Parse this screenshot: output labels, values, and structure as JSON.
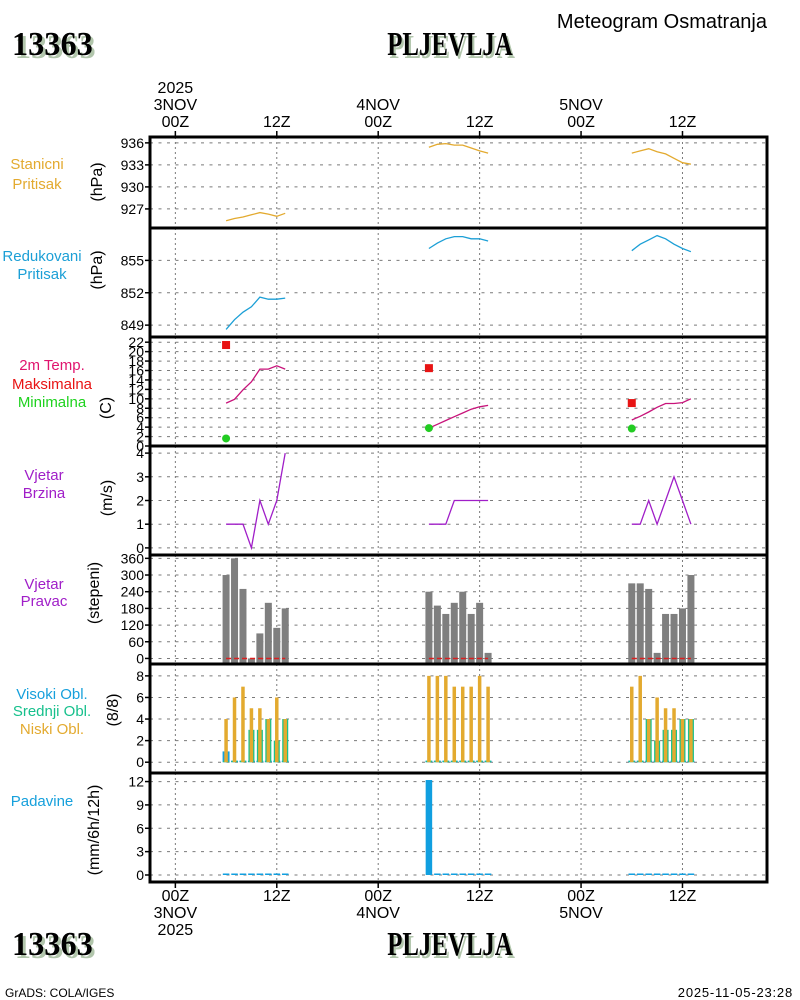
{
  "header": {
    "station_id": "13363",
    "station_name": "PLJEVLJA",
    "title": "Meteogram Osmatranja"
  },
  "footer": {
    "station_id": "13363",
    "station_name": "PLJEVLJA",
    "software": "GrADS: COLA/IGES",
    "timestamp": "2025-11-05-23:28"
  },
  "time_axis": {
    "unit": "hours since 3NOV2025 00Z",
    "range": [
      -3,
      70
    ],
    "ticks": [
      {
        "hour": 0,
        "top": [
          "2025",
          "3NOV",
          "00Z"
        ],
        "bottom": [
          "00Z",
          "3NOV",
          "2025"
        ]
      },
      {
        "hour": 12,
        "top": [
          "12Z"
        ],
        "bottom": [
          "12Z"
        ]
      },
      {
        "hour": 24,
        "top": [
          "4NOV",
          "00Z"
        ],
        "bottom": [
          "00Z",
          "4NOV"
        ]
      },
      {
        "hour": 36,
        "top": [
          "12Z"
        ],
        "bottom": [
          "12Z"
        ]
      },
      {
        "hour": 48,
        "top": [
          "5NOV",
          "00Z"
        ],
        "bottom": [
          "00Z",
          "5NOV"
        ]
      },
      {
        "hour": 60,
        "top": [
          "12Z"
        ],
        "bottom": [
          "12Z"
        ]
      }
    ]
  },
  "chart_data": [
    {
      "id": "stanicni-pritisak",
      "type": "line",
      "title_lines": [
        {
          "text": "Stanicni",
          "color": "#e3aa2f"
        },
        {
          "text": "Pritisak",
          "color": "#e3aa2f"
        }
      ],
      "ylabel": "(hPa)",
      "ylim": [
        924.4,
        936.8
      ],
      "yticks": [
        927,
        930,
        933,
        936
      ],
      "ytick_labels": [
        "927",
        "930",
        "933",
        "936"
      ],
      "series": [
        {
          "name": "Stanicni Pritisak",
          "kind": "line",
          "color": "#e3aa2f",
          "x": [
            6,
            7,
            8,
            9,
            10,
            11,
            12,
            13,
            30,
            31,
            32,
            33,
            34,
            35,
            36,
            37,
            54,
            55,
            56,
            57,
            58,
            59,
            60,
            61
          ],
          "y": [
            925.4,
            925.7,
            925.9,
            926.2,
            926.5,
            926.3,
            926.0,
            926.4,
            935.4,
            935.8,
            935.9,
            935.7,
            935.7,
            935.3,
            934.9,
            934.6,
            934.6,
            934.9,
            935.2,
            934.8,
            934.5,
            933.9,
            933.3,
            933.1
          ]
        }
      ]
    },
    {
      "id": "redukovani-pritisak",
      "type": "line",
      "title_lines": [
        {
          "text": "Redukovani",
          "color": "#1b9fd6"
        },
        {
          "text": "Pritisak",
          "color": "#1b9fd6"
        }
      ],
      "ylabel": "(hPa)",
      "ylim": [
        847.9,
        858.0
      ],
      "yticks": [
        849,
        852,
        855
      ],
      "ytick_labels": [
        "849",
        "852",
        "855"
      ],
      "series": [
        {
          "name": "Redukovani Pritisak",
          "kind": "line",
          "color": "#1b9fd6",
          "x": [
            6,
            7,
            8,
            9,
            10,
            11,
            12,
            13,
            30,
            31,
            32,
            33,
            34,
            35,
            36,
            37,
            54,
            55,
            56,
            57,
            58,
            59,
            60,
            61
          ],
          "y": [
            848.6,
            849.5,
            850.2,
            850.7,
            851.6,
            851.4,
            851.4,
            851.5,
            856.1,
            856.6,
            857.0,
            857.2,
            857.2,
            857.0,
            857.0,
            856.8,
            855.9,
            856.5,
            856.9,
            857.3,
            857.0,
            856.5,
            856.1,
            855.8
          ]
        }
      ]
    },
    {
      "id": "temperatura",
      "type": "line",
      "title_lines": [
        {
          "text": "2m Temp.",
          "color": "#e0146e"
        },
        {
          "text": "Maksimalna",
          "color": "#e81414"
        },
        {
          "text": "Minimalna",
          "color": "#1ed21e"
        }
      ],
      "ylabel": "(C)",
      "ylim": [
        0,
        23.1
      ],
      "yticks": [
        0,
        2,
        4,
        6,
        8,
        10,
        12,
        14,
        16,
        18,
        20,
        22
      ],
      "ytick_labels": [
        "0",
        "2",
        "4",
        "6",
        "8",
        "10",
        "12",
        "14",
        "16",
        "18",
        "20",
        "22"
      ],
      "series": [
        {
          "name": "2m Temp.",
          "kind": "line",
          "color": "#c8127a",
          "x": [
            6,
            7,
            8,
            9,
            10,
            11,
            12,
            13,
            30,
            31,
            32,
            33,
            34,
            35,
            36,
            37,
            54,
            55,
            56,
            57,
            58,
            59,
            60,
            61
          ],
          "y": [
            9.1,
            9.9,
            11.9,
            13.6,
            16.3,
            16.3,
            17.0,
            16.3,
            3.8,
            4.6,
            5.4,
            6.2,
            7.0,
            7.8,
            8.3,
            8.6,
            5.5,
            6.3,
            7.2,
            8.2,
            9.0,
            9.0,
            9.2,
            10.0
          ]
        },
        {
          "name": "Maksimalna",
          "kind": "square",
          "color": "#e81414",
          "x": [
            6,
            30,
            54
          ],
          "y": [
            21.4,
            16.5,
            9.1
          ]
        },
        {
          "name": "Minimalna",
          "kind": "circle",
          "color": "#22cc22",
          "x": [
            6,
            30,
            54
          ],
          "y": [
            1.6,
            3.8,
            3.7
          ]
        }
      ]
    },
    {
      "id": "vjetar-brzina",
      "type": "line",
      "title_lines": [
        {
          "text": "Vjetar",
          "color": "#a01ec8"
        },
        {
          "text": "Brzina",
          "color": "#a01ec8"
        }
      ],
      "ylabel": "(m/s)",
      "ylim": [
        -0.3,
        4.3
      ],
      "yticks": [
        0,
        1,
        2,
        3,
        4
      ],
      "ytick_labels": [
        "0",
        "1",
        "2",
        "3",
        "4"
      ],
      "series": [
        {
          "name": "Vjetar Brzina",
          "kind": "line",
          "color": "#a01ec8",
          "x": [
            6,
            7,
            8,
            9,
            10,
            11,
            12,
            13,
            30,
            31,
            32,
            33,
            34,
            35,
            36,
            37,
            54,
            55,
            56,
            57,
            58,
            59,
            60,
            61
          ],
          "y": [
            1,
            1,
            1,
            0,
            2,
            1,
            2,
            4,
            1,
            1,
            1,
            2,
            2,
            2,
            2,
            2,
            1,
            1,
            2,
            1,
            2,
            3,
            2,
            1
          ]
        }
      ]
    },
    {
      "id": "vjetar-pravac",
      "type": "bar",
      "title_lines": [
        {
          "text": "Vjetar",
          "color": "#a01ec8"
        },
        {
          "text": "Pravac",
          "color": "#a01ec8"
        }
      ],
      "ylabel": "(stepeni)",
      "ylim": [
        -20,
        372
      ],
      "yticks": [
        0,
        60,
        120,
        180,
        240,
        300,
        360
      ],
      "ytick_labels": [
        "0",
        "60",
        "120",
        "180",
        "240",
        "300",
        "360"
      ],
      "series": [
        {
          "name": "Vjetar Pravac",
          "kind": "bar",
          "color": "#7f7f7f",
          "bar_base": -20,
          "x": [
            6,
            7,
            8,
            9,
            10,
            11,
            12,
            13,
            30,
            31,
            32,
            33,
            34,
            35,
            36,
            37,
            54,
            55,
            56,
            57,
            58,
            59,
            60,
            61
          ],
          "y": [
            300,
            360,
            250,
            0,
            90,
            200,
            110,
            180,
            240,
            190,
            160,
            200,
            240,
            160,
            200,
            20,
            270,
            270,
            250,
            20,
            160,
            160,
            180,
            300
          ]
        }
      ],
      "reference_lines": [
        {
          "y": 0,
          "color": "#dd1e1e",
          "x_ranges": [
            [
              6,
              13
            ],
            [
              30,
              37
            ],
            [
              54,
              61
            ]
          ]
        }
      ]
    },
    {
      "id": "oblacnost",
      "type": "bar",
      "title_lines": [
        {
          "text": "Visoki Obl.",
          "color": "#16a0dc"
        },
        {
          "text": "Srednji Obl.",
          "color": "#16c08c"
        },
        {
          "text": "Niski Obl.",
          "color": "#e3aa2f"
        }
      ],
      "ylabel": "(8/8)",
      "ylim": [
        -1,
        9.1
      ],
      "yticks": [
        0,
        2,
        4,
        6,
        8
      ],
      "ytick_labels": [
        "0",
        "2",
        "4",
        "6",
        "8"
      ],
      "series": [
        {
          "name": "Visoki Obl.",
          "kind": "bar",
          "color": "#16a0dc",
          "bar_base": 0,
          "x": [
            6,
            7,
            8,
            9,
            10,
            11,
            12,
            13,
            30,
            31,
            32,
            33,
            34,
            35,
            36,
            37,
            54,
            55,
            56,
            57,
            58,
            59,
            60,
            61
          ],
          "y": [
            1,
            0,
            0,
            0,
            0,
            0,
            0,
            0,
            0,
            0,
            0,
            0,
            0,
            0,
            0,
            0,
            0,
            0,
            0,
            0,
            0,
            0,
            0,
            0
          ]
        },
        {
          "name": "Srednji Obl.",
          "kind": "bar",
          "color": "#1cc08a",
          "bar_base": 0,
          "x": [
            6,
            7,
            8,
            9,
            10,
            11,
            12,
            13,
            30,
            31,
            32,
            33,
            34,
            35,
            36,
            37,
            54,
            55,
            56,
            57,
            58,
            59,
            60,
            61
          ],
          "y": [
            0,
            0,
            0,
            3,
            3,
            4,
            2,
            4,
            0,
            0,
            0,
            0,
            0,
            0,
            0,
            0,
            0,
            0,
            4,
            2,
            3,
            3,
            4,
            4
          ]
        },
        {
          "name": "Niski Obl.",
          "kind": "bar",
          "color": "#e3aa2f",
          "bar_base": 0,
          "x": [
            6,
            7,
            8,
            9,
            10,
            11,
            12,
            13,
            30,
            31,
            32,
            33,
            34,
            35,
            36,
            37,
            54,
            55,
            56,
            57,
            58,
            59,
            60,
            61
          ],
          "y": [
            4,
            6,
            7,
            5,
            5,
            4,
            6,
            4,
            8,
            8,
            8,
            7,
            7,
            7,
            8,
            7,
            7,
            8,
            4,
            6,
            5,
            5,
            4,
            4
          ]
        }
      ]
    },
    {
      "id": "padavine",
      "type": "bar",
      "title_lines": [
        {
          "text": "Padavine",
          "color": "#16a0dc"
        }
      ],
      "ylabel": "(mm/6h/12h)",
      "ylim": [
        -0.9,
        13.1
      ],
      "yticks": [
        0,
        3,
        6,
        9,
        12
      ],
      "ytick_labels": [
        "0",
        "3",
        "6",
        "9",
        "12"
      ],
      "series": [
        {
          "name": "Padavine",
          "kind": "bar",
          "color": "#109fe0",
          "bar_base": 0,
          "x": [
            6,
            7,
            8,
            9,
            10,
            11,
            12,
            13,
            30,
            31,
            32,
            33,
            34,
            35,
            36,
            37,
            54,
            55,
            56,
            57,
            58,
            59,
            60,
            61
          ],
          "y": [
            0,
            0,
            0,
            0,
            0,
            0,
            0,
            0,
            12.2,
            0,
            0,
            0,
            0,
            0,
            0,
            0,
            0,
            0,
            0,
            0,
            0,
            0,
            0,
            0
          ]
        }
      ]
    }
  ]
}
